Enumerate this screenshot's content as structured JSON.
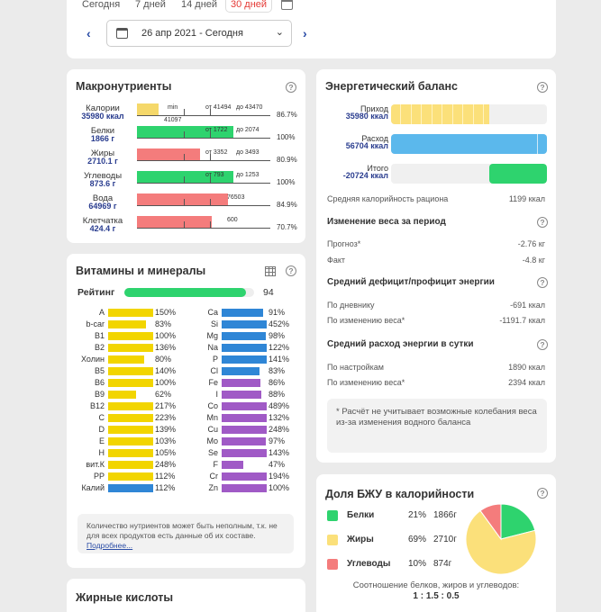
{
  "period": {
    "tabs": [
      "Сегодня",
      "7 дней",
      "14 дней",
      "30 дней"
    ],
    "range": "26 апр 2021 - Сегодня"
  },
  "macros": {
    "title": "Макронутриенты",
    "rows": [
      {
        "name": "Калории",
        "value": "35980 ккал",
        "color": "#f5d86a",
        "fill_frac": 0.16,
        "pct": "86.7%",
        "note_min": "min",
        "note_a": "от 41494",
        "note_b": "до 43470",
        "note_under": "41097"
      },
      {
        "name": "Белки",
        "value": "1866 г",
        "color": "#2ed36e",
        "fill_frac": 0.72,
        "pct": "100%",
        "note_a": "от 1722",
        "note_b": "до 2074"
      },
      {
        "name": "Жиры",
        "value": "2710.1 г",
        "color": "#f47c7c",
        "fill_frac": 0.47,
        "pct": "80.9%",
        "note_a": "от 3352",
        "note_b": "до 3493"
      },
      {
        "name": "Углеводы",
        "value": "873.6 г",
        "color": "#2ed36e",
        "fill_frac": 0.72,
        "pct": "100%",
        "note_a": "от 793",
        "note_b": "до 1253"
      },
      {
        "name": "Вода",
        "value": "64969 г",
        "color": "#f47c7c",
        "fill_frac": 0.68,
        "pct": "84.9%",
        "note_a": "76503"
      },
      {
        "name": "Клетчатка",
        "value": "424.4 г",
        "color": "#f47c7c",
        "fill_frac": 0.56,
        "pct": "70.7%",
        "note_a": "600"
      }
    ]
  },
  "vitamins": {
    "title": "Витамины и минералы",
    "rating_label": "Рейтинг",
    "rating_value": "94",
    "rating_frac": 0.94,
    "left": [
      {
        "n": "A",
        "p": "150%",
        "c": "#f2d500",
        "f": 1.0
      },
      {
        "n": "b-car",
        "p": "83%",
        "c": "#f2d500",
        "f": 0.83
      },
      {
        "n": "B1",
        "p": "100%",
        "c": "#f2d500",
        "f": 1.0
      },
      {
        "n": "B2",
        "p": "136%",
        "c": "#f2d500",
        "f": 1.0
      },
      {
        "n": "Холин",
        "p": "80%",
        "c": "#f2d500",
        "f": 0.8
      },
      {
        "n": "B5",
        "p": "140%",
        "c": "#f2d500",
        "f": 1.0
      },
      {
        "n": "B6",
        "p": "100%",
        "c": "#f2d500",
        "f": 1.0
      },
      {
        "n": "B9",
        "p": "62%",
        "c": "#f2d500",
        "f": 0.62
      },
      {
        "n": "B12",
        "p": "217%",
        "c": "#f2d500",
        "f": 1.0
      },
      {
        "n": "C",
        "p": "223%",
        "c": "#f2d500",
        "f": 1.0
      },
      {
        "n": "D",
        "p": "139%",
        "c": "#f2d500",
        "f": 1.0
      },
      {
        "n": "E",
        "p": "103%",
        "c": "#f2d500",
        "f": 1.0
      },
      {
        "n": "H",
        "p": "105%",
        "c": "#f2d500",
        "f": 1.0
      },
      {
        "n": "вит.К",
        "p": "248%",
        "c": "#f2d500",
        "f": 1.0
      },
      {
        "n": "PP",
        "p": "112%",
        "c": "#f2d500",
        "f": 1.0
      },
      {
        "n": "Калий",
        "p": "112%",
        "c": "#2f86d6",
        "f": 1.0
      }
    ],
    "right": [
      {
        "n": "Ca",
        "p": "91%",
        "c": "#2f86d6",
        "f": 0.91
      },
      {
        "n": "Si",
        "p": "452%",
        "c": "#2f86d6",
        "f": 1.0
      },
      {
        "n": "Mg",
        "p": "98%",
        "c": "#2f86d6",
        "f": 0.98
      },
      {
        "n": "Na",
        "p": "122%",
        "c": "#2f86d6",
        "f": 1.0
      },
      {
        "n": "P",
        "p": "141%",
        "c": "#2f86d6",
        "f": 1.0
      },
      {
        "n": "Cl",
        "p": "83%",
        "c": "#2f86d6",
        "f": 0.83
      },
      {
        "n": "Fe",
        "p": "86%",
        "c": "#a05ac6",
        "f": 0.86
      },
      {
        "n": "I",
        "p": "88%",
        "c": "#a05ac6",
        "f": 0.88
      },
      {
        "n": "Co",
        "p": "489%",
        "c": "#a05ac6",
        "f": 1.0
      },
      {
        "n": "Mn",
        "p": "132%",
        "c": "#a05ac6",
        "f": 1.0
      },
      {
        "n": "Cu",
        "p": "248%",
        "c": "#a05ac6",
        "f": 1.0
      },
      {
        "n": "Mo",
        "p": "97%",
        "c": "#a05ac6",
        "f": 0.97
      },
      {
        "n": "Se",
        "p": "143%",
        "c": "#a05ac6",
        "f": 1.0
      },
      {
        "n": "F",
        "p": "47%",
        "c": "#a05ac6",
        "f": 0.47
      },
      {
        "n": "Cr",
        "p": "194%",
        "c": "#a05ac6",
        "f": 1.0
      },
      {
        "n": "Zn",
        "p": "100%",
        "c": "#a05ac6",
        "f": 1.0
      }
    ],
    "note": "Количество нутриентов может быть неполным, т.к. не для всех продуктов есть данные об их составе.",
    "note_link": "Подробнее..."
  },
  "fatty": {
    "title": "Жирные кислоты"
  },
  "energy": {
    "title": "Энергетический баланс",
    "income_label": "Приход",
    "income_value": "35980 ккал",
    "income_frac": 0.63,
    "expense_label": "Расход",
    "expense_value": "56704 ккал",
    "expense_frac": 1.0,
    "total_label": "Итого",
    "total_value": "-20724 ккал",
    "total_frac": 0.37,
    "avg_label": "Средняя калорийность рациона",
    "avg_value": "1199 ккал",
    "weight_title": "Изменение веса за период",
    "forecast_label": "Прогноз*",
    "forecast_value": "-2.76 кг",
    "fact_label": "Факт",
    "fact_value": "-4.8 кг",
    "deficit_title": "Средний дефицит/профицит энергии",
    "by_diary_label": "По дневнику",
    "by_diary_value": "-691 ккал",
    "by_weight_label": "По изменению веса*",
    "by_weight_value": "-1191.7 ккал",
    "expense_title": "Средний расход энергии в сутки",
    "by_settings_label": "По настройкам",
    "by_settings_value": "1890 ккал",
    "by_weight2_label": "По изменению веса*",
    "by_weight2_value": "2394 ккал",
    "footnote": "* Расчёт не учитывает возможные колебания веса из-за изменения водного баланса"
  },
  "bju": {
    "title": "Доля БЖУ в калорийности",
    "items": [
      {
        "name": "Белки",
        "pct": "21%",
        "grams": "1866г",
        "color": "#2ed36e",
        "share": 21
      },
      {
        "name": "Жиры",
        "pct": "69%",
        "grams": "2710г",
        "color": "#fbe07a",
        "share": 69
      },
      {
        "name": "Углеводы",
        "pct": "10%",
        "grams": "874г",
        "color": "#f47c7c",
        "share": 10
      }
    ],
    "ratio_label": "Соотношение белков, жиров и углеводов:",
    "ratio_value": "1 : 1.5 : 0.5"
  }
}
